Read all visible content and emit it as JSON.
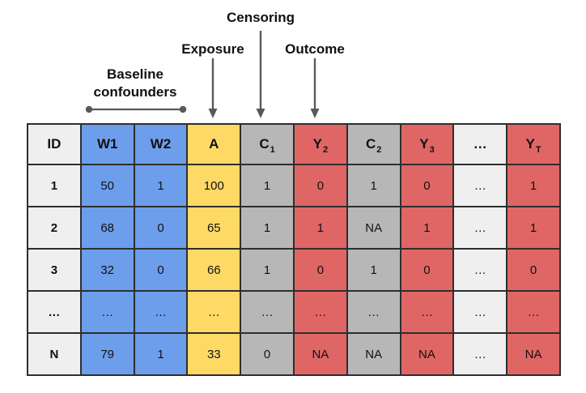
{
  "colors": {
    "background": "#ffffff",
    "border": "#2e2e2e",
    "arrow": "#595959",
    "id_col": "#efefef",
    "confounder_col": "#6d9eeb",
    "exposure_col": "#ffd966",
    "censor_col": "#b7b7b7",
    "outcome_col": "#e06666"
  },
  "annotations": {
    "censoring": {
      "label": "Censoring"
    },
    "exposure": {
      "label": "Exposure"
    },
    "outcome": {
      "label": "Outcome"
    },
    "baseline_confounders": {
      "label": "Baseline\nconfounders"
    }
  },
  "table": {
    "columns": [
      {
        "id": "ID",
        "label": "ID",
        "sub": "",
        "role": "id"
      },
      {
        "id": "W1",
        "label": "W1",
        "sub": "",
        "role": "confounder"
      },
      {
        "id": "W2",
        "label": "W2",
        "sub": "",
        "role": "confounder"
      },
      {
        "id": "A",
        "label": "A",
        "sub": "",
        "role": "exposure"
      },
      {
        "id": "C1",
        "label": "C",
        "sub": "1",
        "role": "censor"
      },
      {
        "id": "Y2",
        "label": "Y",
        "sub": "2",
        "role": "outcome"
      },
      {
        "id": "C2",
        "label": "C",
        "sub": "2",
        "role": "censor"
      },
      {
        "id": "Y3",
        "label": "Y",
        "sub": "3",
        "role": "outcome"
      },
      {
        "id": "dots",
        "label": "…",
        "sub": "",
        "role": "id"
      },
      {
        "id": "YT",
        "label": "Y",
        "sub": "T",
        "role": "outcome"
      }
    ],
    "rows": [
      [
        "1",
        "50",
        "1",
        "100",
        "1",
        "0",
        "1",
        "0",
        "…",
        "1"
      ],
      [
        "2",
        "68",
        "0",
        "65",
        "1",
        "1",
        "NA",
        "1",
        "…",
        "1"
      ],
      [
        "3",
        "32",
        "0",
        "66",
        "1",
        "0",
        "1",
        "0",
        "…",
        "0"
      ],
      [
        "…",
        "…",
        "…",
        "…",
        "…",
        "…",
        "…",
        "…",
        "…",
        "…"
      ],
      [
        "N",
        "79",
        "1",
        "33",
        "0",
        "NA",
        "NA",
        "NA",
        "…",
        "NA"
      ]
    ]
  }
}
